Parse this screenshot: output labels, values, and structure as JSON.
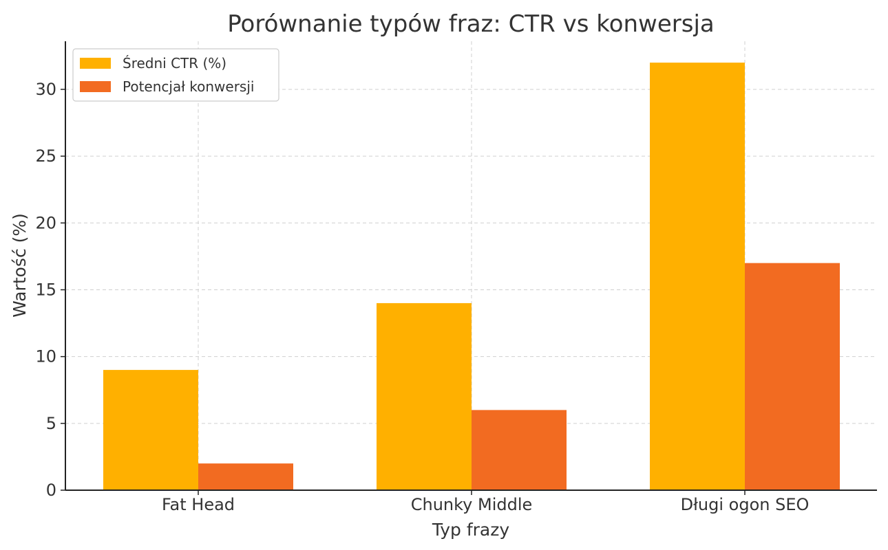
{
  "chart_data": {
    "type": "bar",
    "title": "Porównanie typów fraz: CTR vs konwersja",
    "xlabel": "Typ frazy",
    "ylabel": "Wartość (%)",
    "categories": [
      "Fat Head",
      "Chunky Middle",
      "Długi ogon SEO"
    ],
    "series": [
      {
        "name": "Średni CTR (%)",
        "values": [
          9,
          14,
          32
        ],
        "color": "#ffb000"
      },
      {
        "name": "Potencjał konwersji",
        "values": [
          2,
          6,
          17
        ],
        "color": "#f26b21"
      }
    ],
    "ylim": [
      0,
      33.6
    ],
    "yticks": [
      0,
      5,
      10,
      15,
      20,
      25,
      30
    ],
    "grid": true,
    "legend_position": "top-left"
  }
}
